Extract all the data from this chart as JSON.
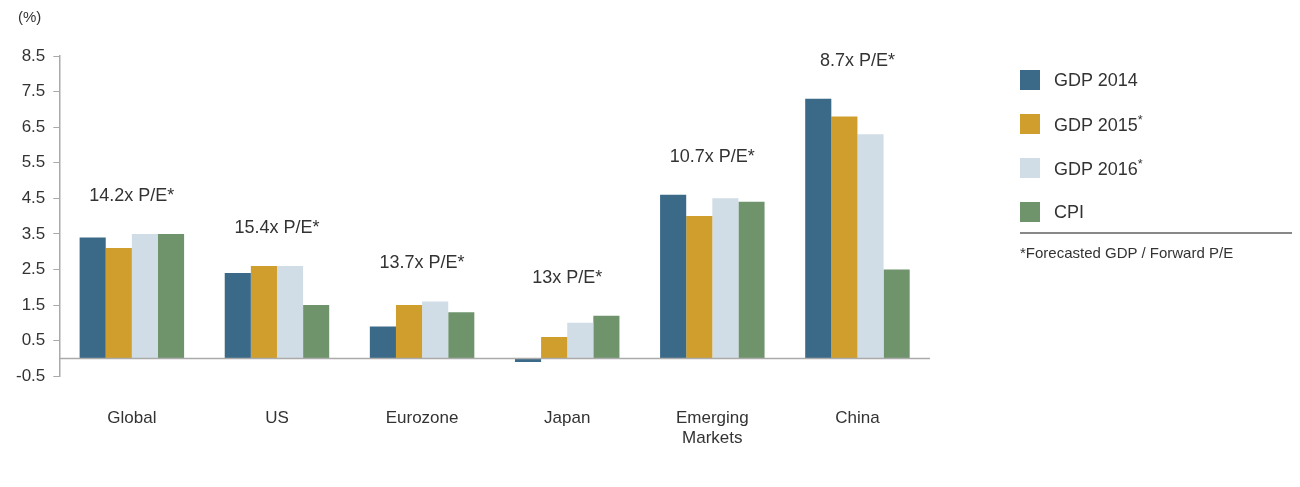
{
  "chart_data": {
    "type": "bar",
    "ylabel": "(%)",
    "categories": [
      "Global",
      "US",
      "Eurozone",
      "Japan",
      "Emerging Markets",
      "China"
    ],
    "series": [
      {
        "name": "GDP 2014",
        "color": "#3b6a89",
        "values": [
          3.4,
          2.4,
          0.9,
          -0.1,
          4.6,
          7.3
        ]
      },
      {
        "name": "GDP 2015$^{*}$",
        "color": "#cf9e2c",
        "values": [
          3.1,
          2.6,
          1.5,
          0.6,
          4.0,
          6.8
        ]
      },
      {
        "name": "GDP 2016$^{*}$",
        "color": "#d0dde6",
        "values": [
          3.5,
          2.6,
          1.6,
          1.0,
          4.5,
          6.3
        ]
      },
      {
        "name": "CPI",
        "color": "#6f946c",
        "values": [
          3.5,
          1.5,
          1.3,
          1.2,
          4.4,
          2.5
        ]
      }
    ],
    "ylim": [
      -0.5,
      8.5
    ],
    "yticks": [
      -0.5,
      0.5,
      1.5,
      2.5,
      3.5,
      4.5,
      5.5,
      6.5,
      7.5,
      8.5
    ],
    "grid": false,
    "legend": "right",
    "annotations": [
      "14.2x P/E*",
      "15.4x P/E*",
      "13.7x P/E*",
      "13x P/E*",
      "10.7x P/E*",
      "8.7x P/E*",
      "*Forecasted GDP / Forward P/E"
    ]
  }
}
